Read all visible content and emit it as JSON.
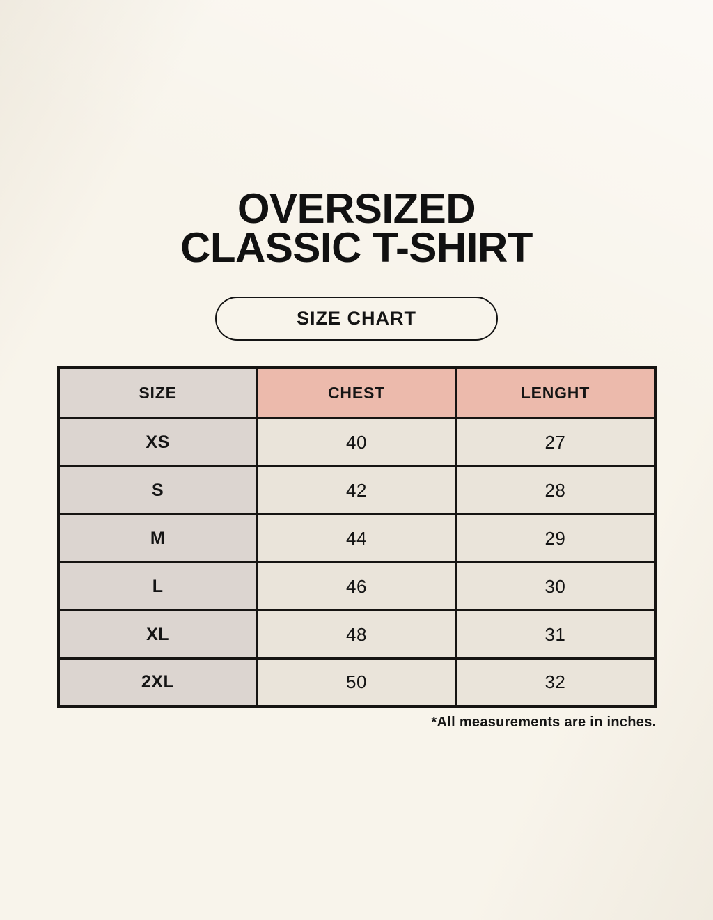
{
  "header": {
    "title_line1": "OVERSIZED",
    "title_line2": "CLASSIC T-SHIRT",
    "badge_label": "SIZE CHART"
  },
  "footnote": "*All measurements are in inches.",
  "colors": {
    "background": "#f8f4eb",
    "size_column_bg": "#dcd5d0",
    "measure_header_bg": "#ecbaac",
    "measure_cell_bg": "#eae4da",
    "border": "#161412",
    "text": "#141414"
  },
  "chart_data": {
    "type": "table",
    "title": "OVERSIZED CLASSIC T-SHIRT — SIZE CHART",
    "columns": [
      "SIZE",
      "CHEST",
      "LENGHT"
    ],
    "rows": [
      [
        "XS",
        "40",
        "27"
      ],
      [
        "S",
        "42",
        "28"
      ],
      [
        "M",
        "44",
        "29"
      ],
      [
        "L",
        "46",
        "30"
      ],
      [
        "XL",
        "48",
        "31"
      ],
      [
        "2XL",
        "50",
        "32"
      ]
    ],
    "units": "inches",
    "note": "*All measurements are in inches."
  }
}
